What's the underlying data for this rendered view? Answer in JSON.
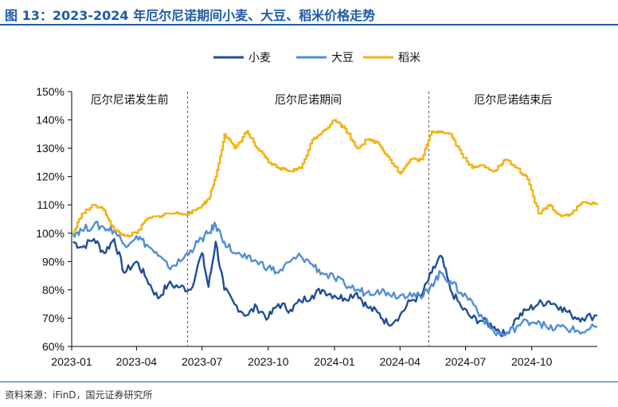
{
  "header": {
    "title": "图 13：2023-2024 年厄尔尼诺期间小麦、大豆、稻米价格走势"
  },
  "footer": {
    "source": "资料来源：iFinD，国元证券研究所"
  },
  "chart_data": {
    "type": "line",
    "title": "",
    "xlabel": "",
    "ylabel": "",
    "x_ticks": [
      "2023-01",
      "2023-04",
      "2023-07",
      "2023-10",
      "2024-01",
      "2024-04",
      "2024-07",
      "2024-10"
    ],
    "y_ticks": [
      "60%",
      "70%",
      "80%",
      "90%",
      "100%",
      "110%",
      "120%",
      "130%",
      "140%",
      "150%"
    ],
    "ylim": [
      60,
      150
    ],
    "grid": false,
    "legend": "top-center",
    "period_labels": [
      "厄尔尼诺发生前",
      "厄尔尼诺期间",
      "厄尔尼诺结束后"
    ],
    "period_dividers": [
      "2023-06",
      "2024-05"
    ],
    "series": [
      {
        "name": "小麦",
        "color": "#1f4e96",
        "points": [
          [
            "2023-01-03",
            97
          ],
          [
            "2023-01-15",
            95
          ],
          [
            "2023-02-01",
            98
          ],
          [
            "2023-02-15",
            93
          ],
          [
            "2023-03-01",
            98
          ],
          [
            "2023-03-15",
            86
          ],
          [
            "2023-04-01",
            90
          ],
          [
            "2023-04-15",
            84
          ],
          [
            "2023-05-01",
            77
          ],
          [
            "2023-05-15",
            82
          ],
          [
            "2023-06-01",
            81
          ],
          [
            "2023-06-15",
            80
          ],
          [
            "2023-07-01",
            93
          ],
          [
            "2023-07-10",
            81
          ],
          [
            "2023-07-20",
            97
          ],
          [
            "2023-08-01",
            80
          ],
          [
            "2023-08-15",
            75
          ],
          [
            "2023-09-01",
            71
          ],
          [
            "2023-09-15",
            74
          ],
          [
            "2023-10-01",
            70
          ],
          [
            "2023-10-15",
            75
          ],
          [
            "2023-11-01",
            73
          ],
          [
            "2023-11-15",
            76
          ],
          [
            "2023-12-01",
            78
          ],
          [
            "2023-12-15",
            80
          ],
          [
            "2024-01-01",
            78
          ],
          [
            "2024-01-15",
            77
          ],
          [
            "2024-02-01",
            79
          ],
          [
            "2024-02-15",
            74
          ],
          [
            "2024-03-01",
            72
          ],
          [
            "2024-03-15",
            68
          ],
          [
            "2024-04-01",
            71
          ],
          [
            "2024-04-15",
            76
          ],
          [
            "2024-05-01",
            78
          ],
          [
            "2024-05-15",
            86
          ],
          [
            "2024-05-28",
            92
          ],
          [
            "2024-06-10",
            80
          ],
          [
            "2024-06-25",
            74
          ],
          [
            "2024-07-10",
            70
          ],
          [
            "2024-07-25",
            69
          ],
          [
            "2024-08-10",
            67
          ],
          [
            "2024-08-25",
            64
          ],
          [
            "2024-09-10",
            70
          ],
          [
            "2024-09-25",
            73
          ],
          [
            "2024-10-10",
            75
          ],
          [
            "2024-10-25",
            76
          ],
          [
            "2024-11-10",
            74
          ],
          [
            "2024-11-25",
            71
          ],
          [
            "2024-12-10",
            70
          ],
          [
            "2024-12-31",
            71
          ]
        ]
      },
      {
        "name": "大豆",
        "color": "#4f8fd6",
        "points": [
          [
            "2023-01-03",
            100
          ],
          [
            "2023-01-15",
            101
          ],
          [
            "2023-02-01",
            103
          ],
          [
            "2023-02-15",
            102
          ],
          [
            "2023-03-01",
            101
          ],
          [
            "2023-03-15",
            96
          ],
          [
            "2023-04-01",
            99
          ],
          [
            "2023-04-15",
            96
          ],
          [
            "2023-05-01",
            92
          ],
          [
            "2023-05-15",
            88
          ],
          [
            "2023-06-01",
            90
          ],
          [
            "2023-06-15",
            94
          ],
          [
            "2023-07-01",
            98
          ],
          [
            "2023-07-10",
            100
          ],
          [
            "2023-07-20",
            103
          ],
          [
            "2023-08-01",
            97
          ],
          [
            "2023-08-15",
            93
          ],
          [
            "2023-09-01",
            91
          ],
          [
            "2023-09-15",
            90
          ],
          [
            "2023-10-01",
            88
          ],
          [
            "2023-10-15",
            86
          ],
          [
            "2023-11-01",
            90
          ],
          [
            "2023-11-15",
            92
          ],
          [
            "2023-12-01",
            89
          ],
          [
            "2023-12-15",
            86
          ],
          [
            "2024-01-01",
            84
          ],
          [
            "2024-01-15",
            82
          ],
          [
            "2024-02-01",
            80
          ],
          [
            "2024-02-15",
            79
          ],
          [
            "2024-03-01",
            80
          ],
          [
            "2024-03-15",
            79
          ],
          [
            "2024-04-01",
            78
          ],
          [
            "2024-04-15",
            79
          ],
          [
            "2024-05-01",
            77
          ],
          [
            "2024-05-15",
            82
          ],
          [
            "2024-05-28",
            86
          ],
          [
            "2024-06-10",
            83
          ],
          [
            "2024-06-25",
            79
          ],
          [
            "2024-07-10",
            76
          ],
          [
            "2024-07-25",
            70
          ],
          [
            "2024-08-10",
            65
          ],
          [
            "2024-08-25",
            64
          ],
          [
            "2024-09-10",
            67
          ],
          [
            "2024-09-25",
            69
          ],
          [
            "2024-10-10",
            69
          ],
          [
            "2024-10-25",
            66
          ],
          [
            "2024-11-10",
            67
          ],
          [
            "2024-11-25",
            66
          ],
          [
            "2024-12-10",
            65
          ],
          [
            "2024-12-31",
            67
          ]
        ]
      },
      {
        "name": "稻米",
        "color": "#f2b318",
        "points": [
          [
            "2023-01-03",
            100
          ],
          [
            "2023-01-15",
            107
          ],
          [
            "2023-02-01",
            110
          ],
          [
            "2023-02-15",
            108
          ],
          [
            "2023-03-01",
            101
          ],
          [
            "2023-03-15",
            99
          ],
          [
            "2023-04-01",
            100
          ],
          [
            "2023-04-15",
            105
          ],
          [
            "2023-05-01",
            106
          ],
          [
            "2023-05-15",
            107
          ],
          [
            "2023-06-01",
            107
          ],
          [
            "2023-06-15",
            107
          ],
          [
            "2023-07-01",
            110
          ],
          [
            "2023-07-10",
            112
          ],
          [
            "2023-07-20",
            120
          ],
          [
            "2023-08-01",
            135
          ],
          [
            "2023-08-15",
            130
          ],
          [
            "2023-09-01",
            136
          ],
          [
            "2023-09-15",
            130
          ],
          [
            "2023-10-01",
            125
          ],
          [
            "2023-10-15",
            123
          ],
          [
            "2023-11-01",
            122
          ],
          [
            "2023-11-15",
            123
          ],
          [
            "2023-12-01",
            133
          ],
          [
            "2023-12-15",
            136
          ],
          [
            "2024-01-01",
            140
          ],
          [
            "2024-01-15",
            137
          ],
          [
            "2024-02-01",
            130
          ],
          [
            "2024-02-15",
            133
          ],
          [
            "2024-03-01",
            132
          ],
          [
            "2024-03-15",
            127
          ],
          [
            "2024-04-01",
            121
          ],
          [
            "2024-04-15",
            126
          ],
          [
            "2024-05-01",
            126
          ],
          [
            "2024-05-15",
            136
          ],
          [
            "2024-05-28",
            136
          ],
          [
            "2024-06-10",
            135
          ],
          [
            "2024-06-25",
            128
          ],
          [
            "2024-07-10",
            123
          ],
          [
            "2024-07-25",
            124
          ],
          [
            "2024-08-10",
            122
          ],
          [
            "2024-08-25",
            126
          ],
          [
            "2024-09-10",
            123
          ],
          [
            "2024-09-25",
            119
          ],
          [
            "2024-10-10",
            107
          ],
          [
            "2024-10-25",
            110
          ],
          [
            "2024-11-10",
            106
          ],
          [
            "2024-11-25",
            107
          ],
          [
            "2024-12-10",
            111
          ],
          [
            "2024-12-31",
            110
          ]
        ]
      }
    ]
  }
}
